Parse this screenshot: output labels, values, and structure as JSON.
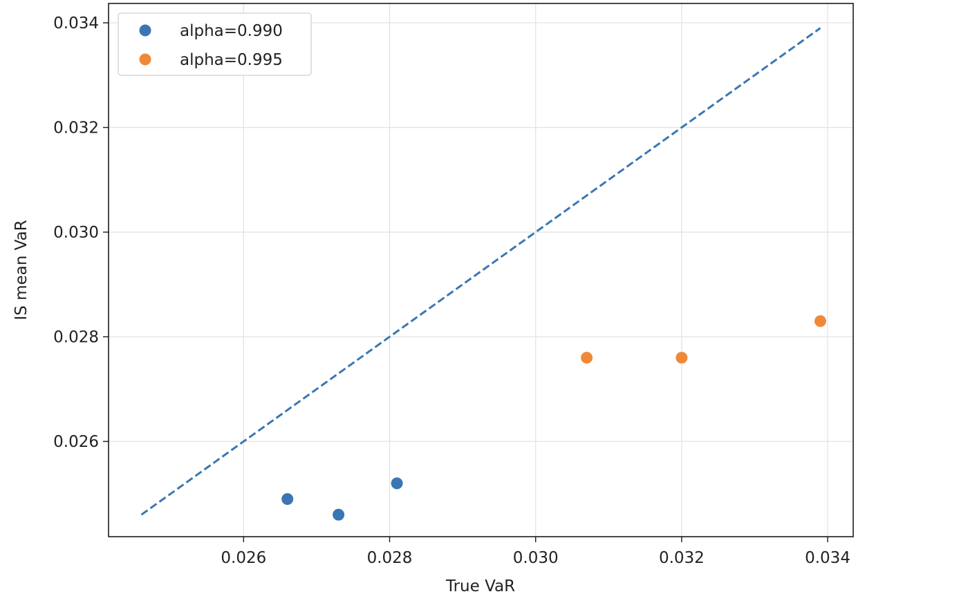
{
  "chart_data": {
    "type": "scatter",
    "xlabel": "True VaR",
    "ylabel": "IS mean VaR",
    "xlim": [
      0.02415,
      0.03435
    ],
    "ylim": [
      0.02418,
      0.03437
    ],
    "x_ticks": [
      "0.026",
      "0.028",
      "0.030",
      "0.032",
      "0.034"
    ],
    "y_ticks": [
      "0.026",
      "0.028",
      "0.030",
      "0.032",
      "0.034"
    ],
    "grid": true,
    "legend_position": "top-left",
    "series": [
      {
        "name": "alpha=0.990",
        "color": "#3a76b3",
        "x": [
          0.0266,
          0.0273,
          0.0281
        ],
        "y": [
          0.0249,
          0.0246,
          0.0252
        ]
      },
      {
        "name": "alpha=0.995",
        "color": "#f0883a",
        "x": [
          0.0307,
          0.032,
          0.0339
        ],
        "y": [
          0.0276,
          0.0276,
          0.0283
        ]
      }
    ],
    "reference_line": {
      "style": "dashed",
      "color": "#3a76b3",
      "x": [
        0.0246,
        0.0339
      ],
      "y": [
        0.0246,
        0.0339
      ]
    }
  }
}
